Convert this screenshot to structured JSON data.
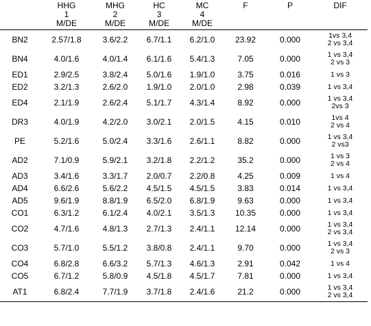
{
  "table": {
    "header": [
      [
        "HHG",
        "1",
        "M/DE"
      ],
      [
        "MHG",
        "2",
        "M/DE"
      ],
      [
        "HC",
        "3",
        "M/DE"
      ],
      [
        "MC",
        "4",
        "M/DE"
      ],
      [
        "F"
      ],
      [
        "P"
      ],
      [
        "DIF"
      ]
    ],
    "rows": [
      {
        "label": "BN2",
        "cells": [
          "2.57/1.8",
          "3.6/2.2",
          "6.7/1.1",
          "6.2/1.0",
          "23.92",
          "0.000"
        ],
        "dif": [
          "1vs 3,4",
          "2 vs 3,4"
        ]
      },
      {
        "label": "BN4",
        "cells": [
          "4.0/1.6",
          "4.0/1.4",
          "6.1/1.6",
          "5.4/1.3",
          "7.05",
          "0.000"
        ],
        "dif": [
          "1 vs 3,4",
          "2 vs 3"
        ]
      },
      {
        "label": "ED1",
        "cells": [
          "2.9/2.5",
          "3.8/2.4",
          "5.0/1.6",
          "1.9/1.0",
          "3.75",
          "0.016"
        ],
        "dif": [
          "1 vs 3"
        ]
      },
      {
        "label": "ED2",
        "cells": [
          "3.2/1.3",
          "2.6/2.0",
          "1.9/1.0",
          "2.0/1.0",
          "2.98",
          "0.039"
        ],
        "dif": [
          "1 vs 3,4"
        ]
      },
      {
        "label": "ED4",
        "cells": [
          "2.1/1.9",
          "2.6/2.4",
          "5.1/1.7",
          "4.3/1.4",
          "8.92",
          "0.000"
        ],
        "dif": [
          "1 vs 3,4",
          "2vs 3"
        ]
      },
      {
        "label": "DR3",
        "cells": [
          "4.0/1.9",
          "4.2/2.0",
          "3.0/2.1",
          "2.0/1.5",
          "4.15",
          "0.010"
        ],
        "dif": [
          "1vs 4",
          "2 vs 4"
        ]
      },
      {
        "label": "PE",
        "cells": [
          "5.2/1.6",
          "5.0/2.4",
          "3.3/1.6",
          "2.6/1.1",
          "8.82",
          "0.000"
        ],
        "dif": [
          "1 vs 3,4",
          "2 vs3"
        ]
      },
      {
        "label": "AD2",
        "cells": [
          "7.1/0.9",
          "5.9/2.1",
          "3.2/1.8",
          "2.2/1.2",
          "35.2",
          "0.000"
        ],
        "dif": [
          "1 vs 3",
          "2 vs 4"
        ]
      },
      {
        "label": "AD3",
        "cells": [
          "3.4/1.6",
          "3.3/1.7",
          "2.0/0.7",
          "2.2/0.8",
          "4.25",
          "0.009"
        ],
        "dif": [
          "1 vs 4"
        ]
      },
      {
        "label": "AD4",
        "cells": [
          "6.6/2.6",
          "5.6/2.2",
          "4.5/1.5",
          "4.5/1.5",
          "3.83",
          "0.014"
        ],
        "dif": [
          "1 vs 3,4"
        ]
      },
      {
        "label": "AD5",
        "cells": [
          "9.6/1.9",
          "8.8/1.9",
          "6.5/2.0",
          "6.8/1.9",
          "9.63",
          "0.000"
        ],
        "dif": [
          "1 vs 3,4"
        ]
      },
      {
        "label": "CO1",
        "cells": [
          "6.3/1.2",
          "6.1/2.4",
          "4.0/2.1",
          "3.5/1.3",
          "10.35",
          "0.000"
        ],
        "dif": [
          "1 vs 3,4"
        ]
      },
      {
        "label": "CO2",
        "cells": [
          "4.7/1.6",
          "4.8/1.3",
          "2.7/1.3",
          "2.4/1.1",
          "12.14",
          "0.000"
        ],
        "dif": [
          "1 vs 3,4",
          "2 vs 3,4"
        ]
      },
      {
        "label": "CO3",
        "cells": [
          "5.7/1.0",
          "5.5/1.2",
          "3.8/0.8",
          "2.4/1.1",
          "9.70",
          "0.000"
        ],
        "dif": [
          "1 vs 3,4",
          "2 vs 3"
        ]
      },
      {
        "label": "CO4",
        "cells": [
          "6.8/2.8",
          "6.6/3.2",
          "5.7/1.3",
          "4.6/1.3",
          "2.91",
          "0.042"
        ],
        "dif": [
          "1 vs 4"
        ]
      },
      {
        "label": "CO5",
        "cells": [
          "6.7/1.2",
          "5.8/0.9",
          "4.5/1.8",
          "4.5/1.7",
          "7.81",
          "0.000"
        ],
        "dif": [
          "1 vs 3,4"
        ]
      },
      {
        "label": "AT1",
        "cells": [
          "6.8/2.4",
          "7.7/1.9",
          "3.7/1.8",
          "2.4/1.6",
          "21.2",
          "0.000"
        ],
        "dif": [
          "1 vs 3,4",
          "2 vs 3,4"
        ]
      }
    ]
  }
}
